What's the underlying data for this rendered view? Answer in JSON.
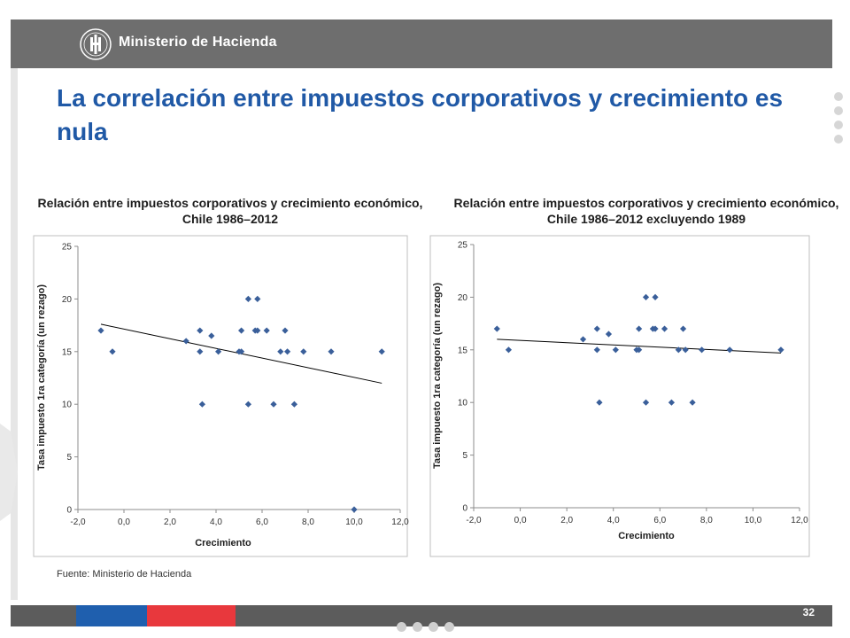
{
  "header": {
    "brand": "Ministerio de Hacienda"
  },
  "title": "La correlación entre impuestos corporativos y crecimiento es nula",
  "source": "Fuente: Ministerio de Hacienda",
  "page_number": "32",
  "colors": {
    "title": "#2059a6",
    "marker": "#3a5f9a",
    "header": "#6e6e6e",
    "footer_blue": "#1f5fae",
    "footer_red": "#e8383d"
  },
  "chart_data": [
    {
      "type": "scatter",
      "title": "Relación entre impuestos corporativos y crecimiento económico, Chile 1986–2012",
      "xlabel": "Crecimiento",
      "ylabel": "Tasa impuesto 1ra categoría (un rezago)",
      "xlim": [
        -2,
        12
      ],
      "ylim": [
        0,
        25
      ],
      "xticks": [
        "-2,0",
        "0,0",
        "2,0",
        "4,0",
        "6,0",
        "8,0",
        "10,0",
        "12,0"
      ],
      "yticks": [
        "0",
        "5",
        "10",
        "15",
        "20",
        "25"
      ],
      "grid": false,
      "points": [
        [
          -1.0,
          17
        ],
        [
          -0.5,
          15
        ],
        [
          2.7,
          16
        ],
        [
          3.3,
          17
        ],
        [
          3.3,
          15
        ],
        [
          3.4,
          10
        ],
        [
          3.8,
          16.5
        ],
        [
          4.1,
          15
        ],
        [
          5.0,
          15
        ],
        [
          5.1,
          15
        ],
        [
          5.1,
          17
        ],
        [
          5.4,
          20
        ],
        [
          5.4,
          10
        ],
        [
          5.7,
          17
        ],
        [
          5.8,
          17
        ],
        [
          5.8,
          20
        ],
        [
          6.2,
          17
        ],
        [
          6.5,
          10
        ],
        [
          6.8,
          15
        ],
        [
          7.0,
          17
        ],
        [
          7.1,
          15
        ],
        [
          7.4,
          10
        ],
        [
          7.8,
          15
        ],
        [
          9.0,
          15
        ],
        [
          10.0,
          0
        ],
        [
          11.2,
          15
        ]
      ],
      "trendline": [
        [
          -1.0,
          17.6
        ],
        [
          11.2,
          12.0
        ]
      ]
    },
    {
      "type": "scatter",
      "title": "Relación entre impuestos corporativos y crecimiento económico, Chile 1986–2012 excluyendo 1989",
      "xlabel": "Crecimiento",
      "ylabel": "Tasa impuesto 1ra categoría (un rezago)",
      "xlim": [
        -2,
        12
      ],
      "ylim": [
        0,
        25
      ],
      "xticks": [
        "-2,0",
        "0,0",
        "2,0",
        "4,0",
        "6,0",
        "8,0",
        "10,0",
        "12,0"
      ],
      "yticks": [
        "0",
        "5",
        "10",
        "15",
        "20",
        "25"
      ],
      "grid": false,
      "points": [
        [
          -1.0,
          17
        ],
        [
          -0.5,
          15
        ],
        [
          2.7,
          16
        ],
        [
          3.3,
          17
        ],
        [
          3.3,
          15
        ],
        [
          3.4,
          10
        ],
        [
          3.8,
          16.5
        ],
        [
          4.1,
          15
        ],
        [
          5.0,
          15
        ],
        [
          5.1,
          15
        ],
        [
          5.1,
          17
        ],
        [
          5.4,
          20
        ],
        [
          5.4,
          10
        ],
        [
          5.7,
          17
        ],
        [
          5.8,
          17
        ],
        [
          5.8,
          20
        ],
        [
          6.2,
          17
        ],
        [
          6.5,
          10
        ],
        [
          6.8,
          15
        ],
        [
          7.0,
          17
        ],
        [
          7.1,
          15
        ],
        [
          7.4,
          10
        ],
        [
          7.8,
          15
        ],
        [
          9.0,
          15
        ],
        [
          11.2,
          15
        ]
      ],
      "trendline": [
        [
          -1.0,
          16.0
        ],
        [
          11.2,
          14.7
        ]
      ]
    }
  ]
}
